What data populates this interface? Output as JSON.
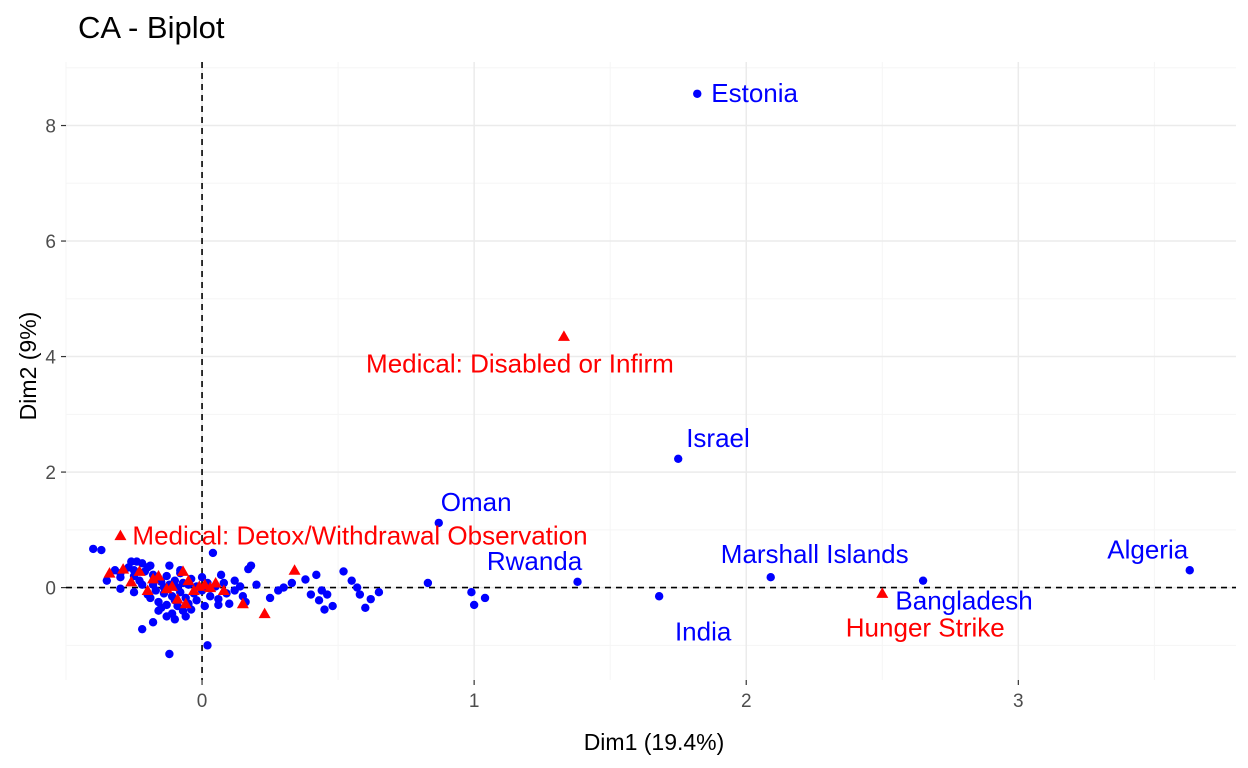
{
  "chart_data": {
    "type": "scatter",
    "title": "CA - Biplot",
    "xlabel": "Dim1 (19.4%)",
    "ylabel": "Dim2 (9%)",
    "xlim": [
      -0.5,
      3.8
    ],
    "ylim": [
      -1.6,
      9.1
    ],
    "x_ticks": [
      0,
      1,
      2,
      3
    ],
    "y_ticks": [
      0,
      2,
      4,
      6,
      8
    ],
    "grid": true,
    "reference_lines": {
      "x": 0,
      "y": 0,
      "style": "dashed"
    },
    "colors": {
      "rows": "#0000ff",
      "columns": "#ff0000",
      "grid_major": "#ebebeb",
      "grid_minor": "#f5f5f5"
    },
    "labeled_points": [
      {
        "label": "Estonia",
        "x": 1.82,
        "y": 8.55,
        "series": "rows"
      },
      {
        "label": "Israel",
        "x": 1.75,
        "y": 2.23,
        "series": "rows"
      },
      {
        "label": "Oman",
        "x": 0.87,
        "y": 1.12,
        "series": "rows"
      },
      {
        "label": "Rwanda",
        "x": 1.38,
        "y": 0.1,
        "series": "rows"
      },
      {
        "label": "Marshall Islands",
        "x": 2.09,
        "y": 0.18,
        "series": "rows"
      },
      {
        "label": "Algeria",
        "x": 3.63,
        "y": 0.3,
        "series": "rows"
      },
      {
        "label": "India",
        "x": 1.68,
        "y": -0.15,
        "series": "rows"
      },
      {
        "label": "Bangladesh",
        "x": 2.65,
        "y": 0.12,
        "series": "rows"
      },
      {
        "label": "Medical: Disabled or Infirm",
        "x": 1.33,
        "y": 4.35,
        "series": "columns"
      },
      {
        "label": "Medical: Detox/Withdrawal Observation",
        "x": -0.3,
        "y": 0.9,
        "series": "columns"
      },
      {
        "label": "Hunger Strike",
        "x": 2.5,
        "y": -0.1,
        "series": "columns"
      }
    ],
    "row_points": [
      [
        -0.4,
        0.67
      ],
      [
        -0.37,
        0.65
      ],
      [
        -0.32,
        0.3
      ],
      [
        -0.3,
        0.25
      ],
      [
        -0.3,
        0.18
      ],
      [
        -0.27,
        0.35
      ],
      [
        -0.25,
        0.3
      ],
      [
        -0.25,
        0.2
      ],
      [
        -0.24,
        0.45
      ],
      [
        -0.23,
        0.12
      ],
      [
        -0.22,
        0.42
      ],
      [
        -0.22,
        0.05
      ],
      [
        -0.21,
        0.28
      ],
      [
        -0.2,
        0.35
      ],
      [
        -0.2,
        -0.12
      ],
      [
        -0.19,
        -0.18
      ],
      [
        -0.18,
        0.05
      ],
      [
        -0.18,
        0.22
      ],
      [
        -0.17,
        -0.05
      ],
      [
        -0.16,
        0.15
      ],
      [
        -0.16,
        -0.25
      ],
      [
        -0.15,
        0.1
      ],
      [
        -0.15,
        -0.35
      ],
      [
        -0.14,
        0.0
      ],
      [
        -0.14,
        -0.1
      ],
      [
        -0.13,
        0.2
      ],
      [
        -0.13,
        -0.3
      ],
      [
        -0.12,
        0.05
      ],
      [
        -0.12,
        0.38
      ],
      [
        -0.11,
        -0.15
      ],
      [
        -0.11,
        -0.45
      ],
      [
        -0.1,
        0.12
      ],
      [
        -0.1,
        -0.22
      ],
      [
        -0.09,
        0.0
      ],
      [
        -0.09,
        -0.32
      ],
      [
        -0.08,
        0.25
      ],
      [
        -0.08,
        -0.08
      ],
      [
        -0.07,
        0.08
      ],
      [
        -0.07,
        -0.4
      ],
      [
        -0.06,
        -0.18
      ],
      [
        -0.05,
        0.05
      ],
      [
        -0.05,
        -0.28
      ],
      [
        -0.04,
        0.15
      ],
      [
        -0.03,
        -0.1
      ],
      [
        -0.02,
        0.02
      ],
      [
        -0.02,
        -0.22
      ],
      [
        0.0,
        0.18
      ],
      [
        0.0,
        -0.05
      ],
      [
        0.01,
        -0.32
      ],
      [
        0.02,
        0.08
      ],
      [
        0.03,
        -0.15
      ],
      [
        0.04,
        0.6
      ],
      [
        0.05,
        0.02
      ],
      [
        0.06,
        -0.2
      ],
      [
        0.07,
        0.22
      ],
      [
        0.08,
        0.08
      ],
      [
        0.09,
        -0.1
      ],
      [
        0.1,
        -0.28
      ],
      [
        0.12,
        0.12
      ],
      [
        0.14,
        0.02
      ],
      [
        0.15,
        -0.15
      ],
      [
        0.16,
        -0.25
      ],
      [
        0.17,
        0.32
      ],
      [
        0.18,
        0.38
      ],
      [
        0.2,
        0.05
      ],
      [
        0.25,
        -0.18
      ],
      [
        0.28,
        -0.05
      ],
      [
        0.3,
        0.0
      ],
      [
        0.33,
        0.08
      ],
      [
        0.38,
        0.14
      ],
      [
        0.4,
        -0.12
      ],
      [
        0.42,
        0.22
      ],
      [
        0.43,
        -0.22
      ],
      [
        0.44,
        -0.05
      ],
      [
        0.45,
        -0.38
      ],
      [
        0.46,
        -0.12
      ],
      [
        0.48,
        -0.32
      ],
      [
        0.52,
        0.28
      ],
      [
        0.55,
        0.12
      ],
      [
        0.57,
        0.0
      ],
      [
        0.58,
        -0.12
      ],
      [
        0.6,
        -0.35
      ],
      [
        0.62,
        -0.2
      ],
      [
        0.65,
        -0.08
      ],
      [
        0.83,
        0.08
      ],
      [
        0.99,
        -0.08
      ],
      [
        1.0,
        -0.3
      ],
      [
        1.04,
        -0.18
      ],
      [
        -0.3,
        -0.02
      ],
      [
        -0.25,
        -0.08
      ],
      [
        -0.18,
        -0.6
      ],
      [
        -0.22,
        -0.72
      ],
      [
        -0.13,
        -0.5
      ],
      [
        -0.12,
        -1.15
      ],
      [
        -0.06,
        -0.5
      ],
      [
        0.02,
        -1.0
      ],
      [
        -0.1,
        -0.55
      ],
      [
        -0.08,
        0.3
      ],
      [
        -0.04,
        -0.38
      ],
      [
        0.06,
        -0.3
      ],
      [
        0.12,
        -0.05
      ],
      [
        -0.16,
        -0.4
      ],
      [
        -0.19,
        0.38
      ],
      [
        -0.26,
        0.45
      ],
      [
        -0.35,
        0.12
      ]
    ],
    "column_points": [
      [
        -0.34,
        0.25
      ],
      [
        -0.29,
        0.32
      ],
      [
        -0.26,
        0.1
      ],
      [
        -0.23,
        0.28
      ],
      [
        -0.2,
        -0.05
      ],
      [
        -0.18,
        0.15
      ],
      [
        -0.16,
        0.2
      ],
      [
        -0.13,
        -0.02
      ],
      [
        -0.11,
        0.02
      ],
      [
        -0.09,
        -0.2
      ],
      [
        -0.07,
        0.28
      ],
      [
        -0.06,
        -0.28
      ],
      [
        -0.05,
        0.12
      ],
      [
        -0.03,
        -0.05
      ],
      [
        -0.01,
        0.02
      ],
      [
        0.01,
        0.05
      ],
      [
        0.03,
        0.0
      ],
      [
        0.05,
        0.08
      ],
      [
        0.08,
        -0.05
      ],
      [
        0.15,
        -0.28
      ],
      [
        0.23,
        -0.45
      ],
      [
        0.34,
        0.3
      ]
    ]
  }
}
